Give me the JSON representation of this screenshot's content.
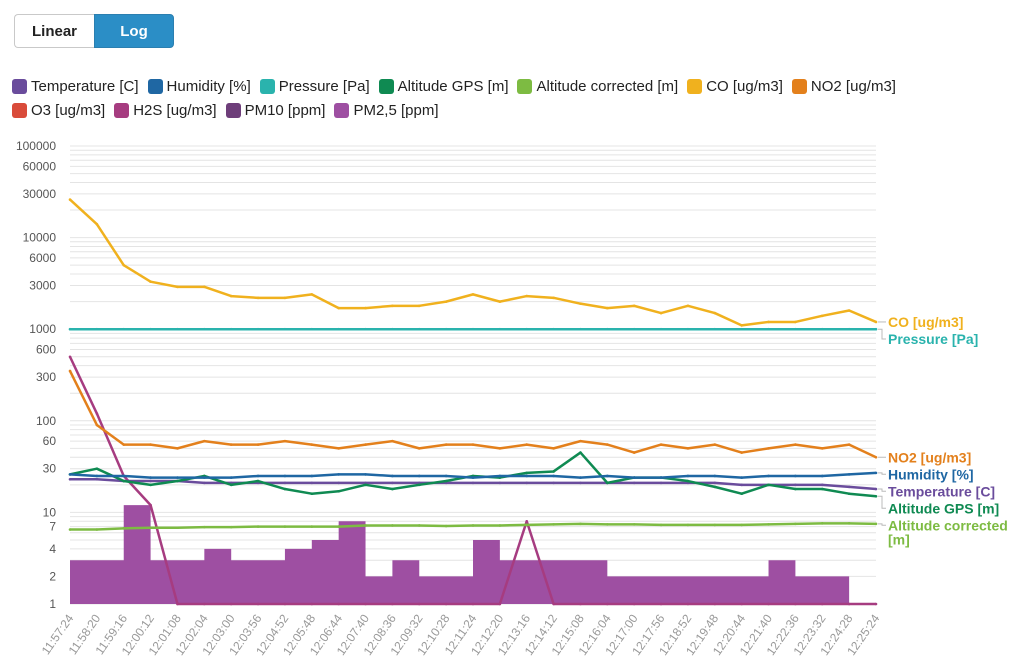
{
  "scale_toggle": {
    "linear_label": "Linear",
    "log_label": "Log",
    "active": "Log"
  },
  "legend": [
    {
      "name": "Temperature [C]",
      "color": "#6a4c9c"
    },
    {
      "name": "Humidity [%]",
      "color": "#1f67a3"
    },
    {
      "name": "Pressure [Pa]",
      "color": "#2ab3ad"
    },
    {
      "name": "Altitude GPS [m]",
      "color": "#0f8a52"
    },
    {
      "name": "Altitude corrected [m]",
      "color": "#7dbb42"
    },
    {
      "name": "CO [ug/m3]",
      "color": "#f0b11e"
    },
    {
      "name": "NO2 [ug/m3]",
      "color": "#e3801c"
    },
    {
      "name": "O3 [ug/m3]",
      "color": "#d94b3a"
    },
    {
      "name": "H2S [ug/m3]",
      "color": "#a63c80"
    },
    {
      "name": "PM10 [ppm]",
      "color": "#6e3e7a"
    },
    {
      "name": "PM2,5 [ppm]",
      "color": "#9e4fa2"
    }
  ],
  "chart_data": {
    "type": "line",
    "yscale": "log",
    "ylim": [
      1,
      100000
    ],
    "yticks": [
      1,
      2,
      4,
      7,
      10,
      30,
      60,
      100,
      300,
      600,
      1000,
      3000,
      6000,
      10000,
      30000,
      60000,
      100000
    ],
    "categories": [
      "11:57:24",
      "11:58:20",
      "11:59:16",
      "12:00:12",
      "12:01:08",
      "12:02:04",
      "12:03:00",
      "12:03:56",
      "12:04:52",
      "12:05:48",
      "12:06:44",
      "12:07:40",
      "12:08:36",
      "12:09:32",
      "12:10:28",
      "12:11:24",
      "12:12:20",
      "12:13:16",
      "12:14:12",
      "12:15:08",
      "12:16:04",
      "12:17:00",
      "12:17:56",
      "12:18:52",
      "12:19:48",
      "12:20:44",
      "12:21:40",
      "12:22:36",
      "12:23:32",
      "12:24:28",
      "12:25:24"
    ],
    "series": [
      {
        "name": "CO [ug/m3]",
        "end_label": "CO [ug/m3]",
        "values": [
          26000,
          14000,
          5000,
          3300,
          2900,
          2900,
          2300,
          2200,
          2200,
          2400,
          1700,
          1700,
          1800,
          1800,
          2000,
          2400,
          2000,
          2300,
          2200,
          1900,
          1700,
          1800,
          1500,
          1800,
          1500,
          1100,
          1200,
          1200,
          1400,
          1600,
          1200
        ]
      },
      {
        "name": "Pressure [Pa]",
        "end_label": "Pressure [Pa]",
        "values": [
          1000,
          1000,
          1000,
          1000,
          1000,
          1000,
          1000,
          1000,
          1000,
          1000,
          1000,
          1000,
          1000,
          1000,
          1000,
          1000,
          1000,
          1000,
          1000,
          1000,
          1000,
          1000,
          1000,
          1000,
          1000,
          1000,
          1000,
          1000,
          1000,
          1000,
          1000
        ]
      },
      {
        "name": "NO2 [ug/m3]",
        "end_label": "NO2 [ug/m3]",
        "values": [
          350,
          90,
          55,
          55,
          50,
          60,
          55,
          55,
          60,
          55,
          50,
          55,
          60,
          50,
          55,
          55,
          50,
          55,
          50,
          60,
          55,
          45,
          55,
          50,
          55,
          45,
          50,
          55,
          50,
          55,
          40
        ]
      },
      {
        "name": "Humidity [%]",
        "end_label": "Humidity [%]",
        "values": [
          26,
          25,
          25,
          24,
          24,
          24,
          24,
          25,
          25,
          25,
          26,
          26,
          25,
          25,
          25,
          24,
          25,
          25,
          25,
          24,
          25,
          24,
          24,
          25,
          25,
          24,
          25,
          25,
          25,
          26,
          27
        ]
      },
      {
        "name": "Temperature [C]",
        "end_label": "Temperature [C]",
        "values": [
          23,
          23,
          22,
          22,
          22,
          21,
          21,
          21,
          21,
          21,
          21,
          21,
          21,
          21,
          21,
          21,
          21,
          21,
          21,
          21,
          21,
          21,
          21,
          21,
          21,
          20,
          20,
          20,
          20,
          19,
          18
        ]
      },
      {
        "name": "Altitude GPS [m]",
        "end_label": "Altitude GPS [m]",
        "values": [
          26,
          30,
          22,
          20,
          22,
          25,
          20,
          22,
          18,
          16,
          17,
          20,
          18,
          20,
          22,
          25,
          24,
          27,
          28,
          45,
          21,
          24,
          24,
          22,
          19,
          16,
          20,
          18,
          18,
          16,
          15
        ]
      },
      {
        "name": "Altitude corrected [m]",
        "end_label": "Altitude corrected [m]",
        "values": [
          6.5,
          6.5,
          6.7,
          6.8,
          6.8,
          6.9,
          6.9,
          7,
          7,
          7,
          7,
          7.2,
          7.2,
          7.2,
          7.1,
          7.2,
          7.2,
          7.3,
          7.4,
          7.5,
          7.4,
          7.4,
          7.3,
          7.3,
          7.3,
          7.3,
          7.4,
          7.5,
          7.6,
          7.6,
          7.5
        ]
      },
      {
        "name": "H2S [ug/m3]",
        "values": [
          500,
          120,
          25,
          12,
          1,
          1,
          1,
          1,
          1,
          1,
          1,
          1,
          1,
          1,
          1,
          1,
          1,
          8,
          1,
          1,
          1,
          1,
          1,
          1,
          1,
          1,
          1,
          1,
          1,
          1,
          1
        ]
      },
      {
        "name": "PM2,5 [ppm]",
        "values": [
          3,
          3,
          12,
          3,
          3,
          4,
          3,
          3,
          4,
          5,
          8,
          2,
          3,
          2,
          2,
          5,
          3,
          3,
          3,
          3,
          2,
          2,
          2,
          2,
          2,
          2,
          3,
          2,
          2,
          1,
          2
        ]
      }
    ]
  }
}
